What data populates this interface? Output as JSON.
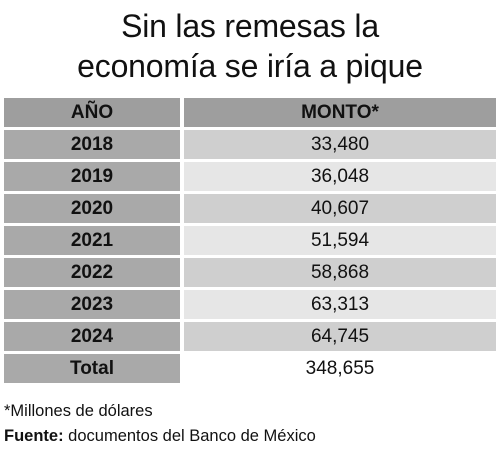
{
  "title": {
    "line1": "Sin las remesas la",
    "line2": "economía se iría a pique"
  },
  "chart_data": {
    "type": "table",
    "columns": [
      "AÑO",
      "MONTO*"
    ],
    "rows": [
      {
        "year": "2018",
        "amount": "33,480"
      },
      {
        "year": "2019",
        "amount": "36,048"
      },
      {
        "year": "2020",
        "amount": "40,607"
      },
      {
        "year": "2021",
        "amount": "51,594"
      },
      {
        "year": "2022",
        "amount": "58,868"
      },
      {
        "year": "2023",
        "amount": "63,313"
      },
      {
        "year": "2024",
        "amount": "64,745"
      }
    ],
    "total": {
      "label": "Total",
      "amount": "348,655"
    }
  },
  "footnote": "*Millones de dólares",
  "source": {
    "label": "Fuente:",
    "text": " documentos del Banco de México"
  },
  "colors": {
    "header_bg": "#9e9e9e",
    "year_bg": "#a9a9a9",
    "row_dark": "#cfcfcf",
    "row_light": "#e6e6e6"
  }
}
